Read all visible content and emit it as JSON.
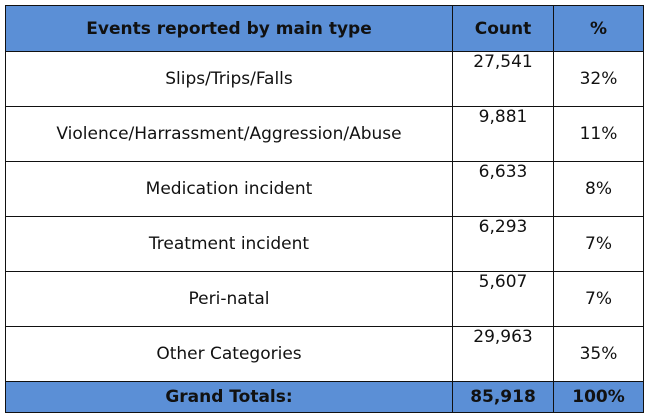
{
  "table": {
    "headers": {
      "type": "Events reported by main type",
      "count": "Count",
      "pct": "%"
    },
    "rows": [
      {
        "type": "Slips/Trips/Falls",
        "count": "27,541",
        "pct": "32%"
      },
      {
        "type": "Violence/Harrassment/Aggression/Abuse",
        "count": "9,881",
        "pct": "11%"
      },
      {
        "type": "Medication incident",
        "count": "6,633",
        "pct": "8%"
      },
      {
        "type": "Treatment incident",
        "count": "6,293",
        "pct": "7%"
      },
      {
        "type": "Peri-natal",
        "count": "5,607",
        "pct": "7%"
      },
      {
        "type": "Other Categories",
        "count": "29,963",
        "pct": "35%"
      }
    ],
    "total": {
      "label": "Grand Totals:",
      "count": "85,918",
      "pct": "100%"
    }
  },
  "colors": {
    "header_bg": "#5b8fd6",
    "border": "#111111"
  }
}
